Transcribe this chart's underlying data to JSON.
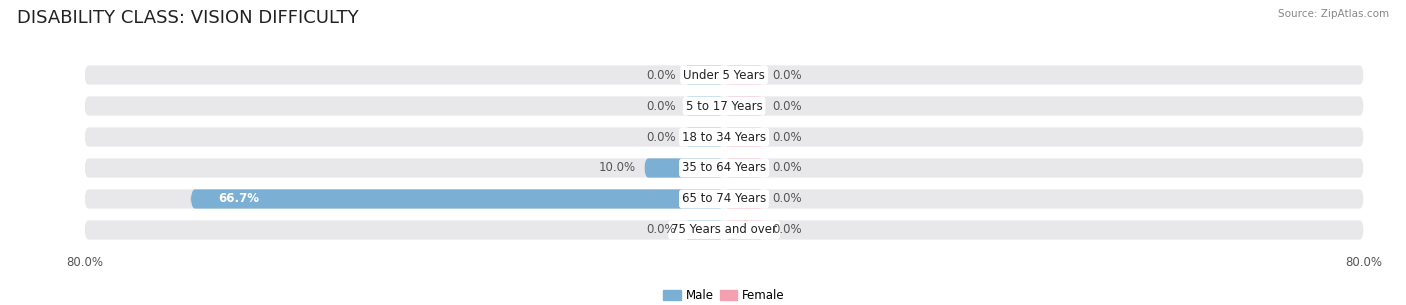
{
  "title": "DISABILITY CLASS: VISION DIFFICULTY",
  "source": "Source: ZipAtlas.com",
  "categories": [
    "Under 5 Years",
    "5 to 17 Years",
    "18 to 34 Years",
    "35 to 64 Years",
    "65 to 74 Years",
    "75 Years and over"
  ],
  "male_values": [
    0.0,
    0.0,
    0.0,
    10.0,
    66.7,
    0.0
  ],
  "female_values": [
    0.0,
    0.0,
    0.0,
    0.0,
    0.0,
    0.0
  ],
  "male_color": "#7bafd4",
  "female_color": "#f4a0b0",
  "axis_max": 80.0,
  "min_stub": 5.0,
  "bar_height": 0.62,
  "bg_color": "#ffffff",
  "row_bg_color": "#e8e8eb",
  "label_color": "#555555",
  "title_color": "#222222",
  "x_tick_left": "80.0%",
  "x_tick_right": "80.0%",
  "cat_label_fontsize": 8.5,
  "val_label_fontsize": 8.5,
  "title_fontsize": 13
}
